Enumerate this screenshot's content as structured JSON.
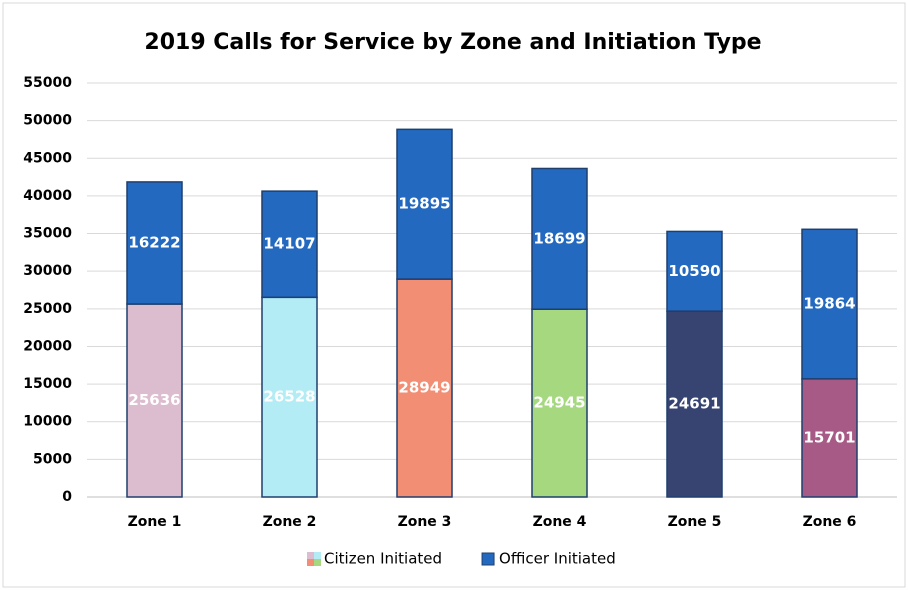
{
  "chart_data": {
    "type": "stacked_bar",
    "title": "2019 Calls for Service by Zone and Initiation Type",
    "categories": [
      "Zone 1",
      "Zone 2",
      "Zone 3",
      "Zone 4",
      "Zone 5",
      "Zone 6"
    ],
    "series": [
      {
        "name": "Citizen Initiated",
        "colors": [
          "#dcbccf",
          "#b3ecf4",
          "#f28e74",
          "#a6d97f",
          "#374370",
          "#a65a85"
        ],
        "values": [
          25636,
          26528,
          28949,
          24945,
          24691,
          15701
        ]
      },
      {
        "name": "Officer Initiated",
        "color": "#2469c0",
        "values": [
          16222,
          14107,
          19895,
          18699,
          10590,
          19864
        ]
      }
    ],
    "ylim": [
      0,
      55000
    ],
    "yticks": [
      0,
      5000,
      10000,
      15000,
      20000,
      25000,
      30000,
      35000,
      40000,
      45000,
      50000,
      55000
    ],
    "grid": true,
    "legend": "bottom"
  }
}
